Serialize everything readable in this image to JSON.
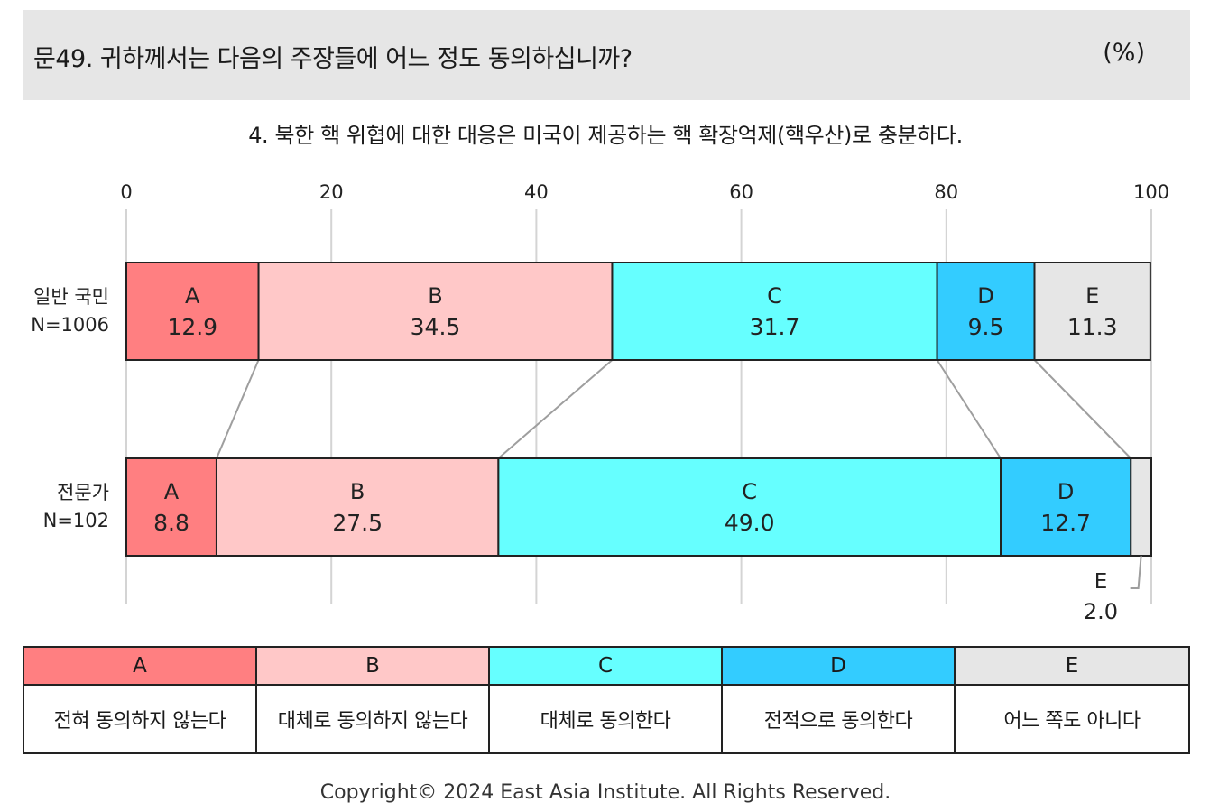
{
  "header": {
    "title": "문49. 귀하께서는 다음의 주장들에 어느 정도 동의하십니까?",
    "unit": "(%)"
  },
  "subtitle": "4. 북한 핵 위협에 대한 대응은 미국이 제공하는 핵 확장억제(핵우산)로 충분하다.",
  "chart_data": {
    "type": "bar",
    "orientation": "horizontal",
    "stacked": true,
    "xlim": [
      0,
      100
    ],
    "xticks": [
      "0",
      "20",
      "40",
      "60",
      "80",
      "100"
    ],
    "grid": true,
    "categories": [
      {
        "label": "일반 국민",
        "n": "N=1006"
      },
      {
        "label": "전문가",
        "n": "N=102"
      }
    ],
    "series": [
      {
        "key": "A",
        "color": "#ff7f81",
        "values": [
          12.9,
          8.8
        ],
        "labels": [
          "12.9",
          "8.8"
        ]
      },
      {
        "key": "B",
        "color": "#ffc8c8",
        "values": [
          34.5,
          27.5
        ],
        "labels": [
          "34.5",
          "27.5"
        ]
      },
      {
        "key": "C",
        "color": "#66ffff",
        "values": [
          31.7,
          49.0
        ],
        "labels": [
          "31.7",
          "49.0"
        ]
      },
      {
        "key": "D",
        "color": "#33ccff",
        "values": [
          9.5,
          12.7
        ],
        "labels": [
          "9.5",
          "12.7"
        ]
      },
      {
        "key": "E",
        "color": "#e6e6e6",
        "values": [
          11.3,
          2.0
        ],
        "labels": [
          "11.3",
          "2.0"
        ]
      }
    ]
  },
  "legend": [
    {
      "key": "A",
      "desc": "전혀 동의하지 않는다",
      "color": "#ff7f81"
    },
    {
      "key": "B",
      "desc": "대체로 동의하지 않는다",
      "color": "#ffc8c8"
    },
    {
      "key": "C",
      "desc": "대체로 동의한다",
      "color": "#66ffff"
    },
    {
      "key": "D",
      "desc": "전적으로 동의한다",
      "color": "#33ccff"
    },
    {
      "key": "E",
      "desc": "어느 쪽도 아니다",
      "color": "#e6e6e6"
    }
  ],
  "footer": "Copyright© 2024 East Asia Institute. All Rights Reserved."
}
